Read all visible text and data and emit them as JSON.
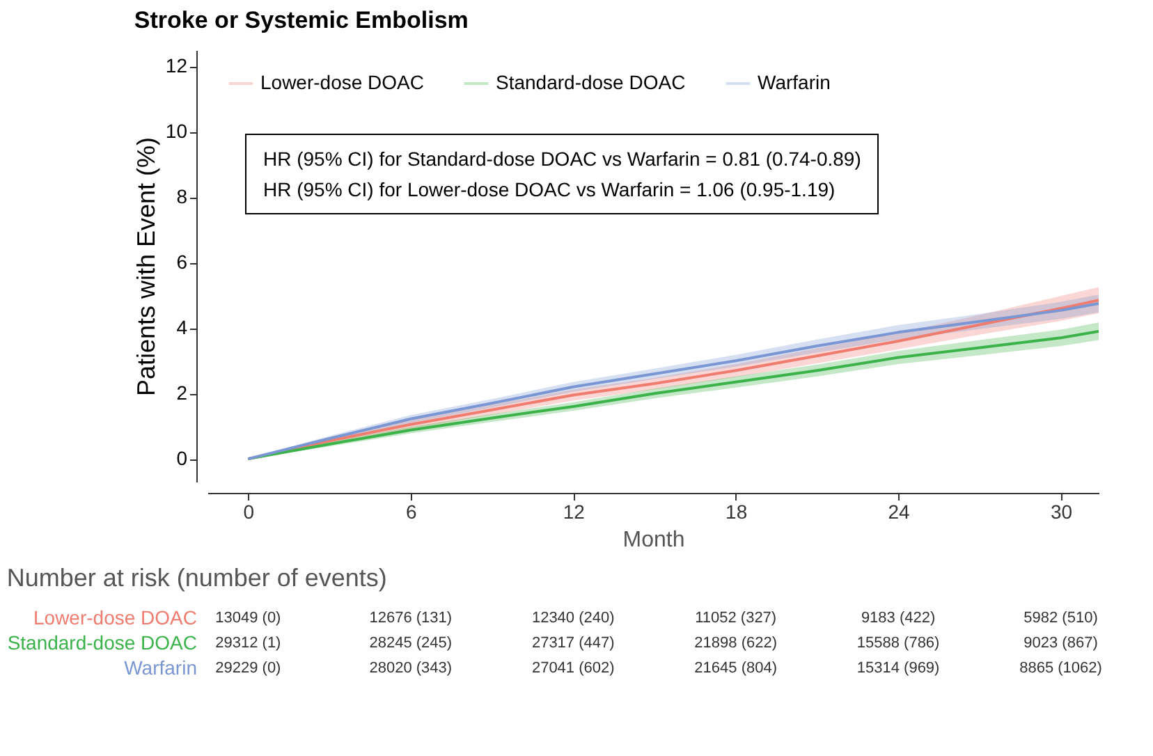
{
  "chart_data": {
    "type": "line",
    "title": "Stroke or Systemic Embolism",
    "xlabel": "Month",
    "ylabel": "Patients with Event (%)",
    "x": [
      0,
      3,
      6,
      9,
      12,
      15,
      18,
      21,
      24,
      27,
      30,
      31.4
    ],
    "series": [
      {
        "name": "Lower-dose DOAC",
        "color": "#f07c70",
        "values": [
          0,
          0.55,
          1.05,
          1.5,
          1.95,
          2.3,
          2.7,
          3.15,
          3.6,
          4.1,
          4.6,
          4.85
        ],
        "lower": [
          0,
          0.45,
          0.92,
          1.35,
          1.78,
          2.12,
          2.5,
          2.92,
          3.35,
          3.8,
          4.22,
          4.45
        ],
        "upper": [
          0,
          0.65,
          1.18,
          1.65,
          2.12,
          2.48,
          2.9,
          3.38,
          3.85,
          4.4,
          4.98,
          5.25
        ]
      },
      {
        "name": "Standard-dose DOAC",
        "color": "#3cb34a",
        "values": [
          0,
          0.45,
          0.88,
          1.25,
          1.6,
          2.0,
          2.35,
          2.7,
          3.1,
          3.4,
          3.7,
          3.9
        ],
        "lower": [
          0,
          0.38,
          0.78,
          1.13,
          1.47,
          1.85,
          2.18,
          2.52,
          2.9,
          3.17,
          3.45,
          3.63
        ],
        "upper": [
          0,
          0.52,
          0.98,
          1.37,
          1.73,
          2.15,
          2.52,
          2.88,
          3.3,
          3.63,
          3.95,
          4.17
        ]
      },
      {
        "name": "Warfarin",
        "color": "#7b97d3",
        "values": [
          0,
          0.62,
          1.22,
          1.7,
          2.2,
          2.6,
          3.0,
          3.45,
          3.87,
          4.2,
          4.54,
          4.75
        ],
        "lower": [
          0,
          0.54,
          1.1,
          1.57,
          2.05,
          2.44,
          2.82,
          3.25,
          3.65,
          3.97,
          4.28,
          4.48
        ],
        "upper": [
          0,
          0.7,
          1.34,
          1.83,
          2.35,
          2.76,
          3.18,
          3.65,
          4.09,
          4.43,
          4.8,
          5.02
        ]
      }
    ],
    "xlim": [
      -1.5,
      31.4
    ],
    "xticks": [
      0,
      6,
      12,
      18,
      24,
      30
    ],
    "ylim": [
      -0.7,
      12.5
    ],
    "yticks": [
      0,
      2,
      4,
      6,
      8,
      10,
      12
    ],
    "grid": false,
    "legend": "top left",
    "marker": "none",
    "line_style": "solid",
    "annotations": [
      "HR (95% CI) for Standard-dose DOAC vs Warfarin = 0.81 (0.74-0.89)",
      "HR (95% CI) for Lower-dose DOAC vs Warfarin = 1.06 (0.95-1.19)",
      "Number at risk (number of events)",
      "13049 (0)",
      "12676 (131)",
      "12340 (240)",
      "11052 (327)",
      "9183 (422)",
      "5982 (510)",
      "29312 (1)",
      "28245 (245)",
      "27317 (447)",
      "21898 (622)",
      "15588 (786)",
      "9023 (867)",
      "29229 (0)",
      "28020 (343)",
      "27041 (602)",
      "21645 (804)",
      "15314 (969)",
      "8865 (1062)"
    ]
  }
}
